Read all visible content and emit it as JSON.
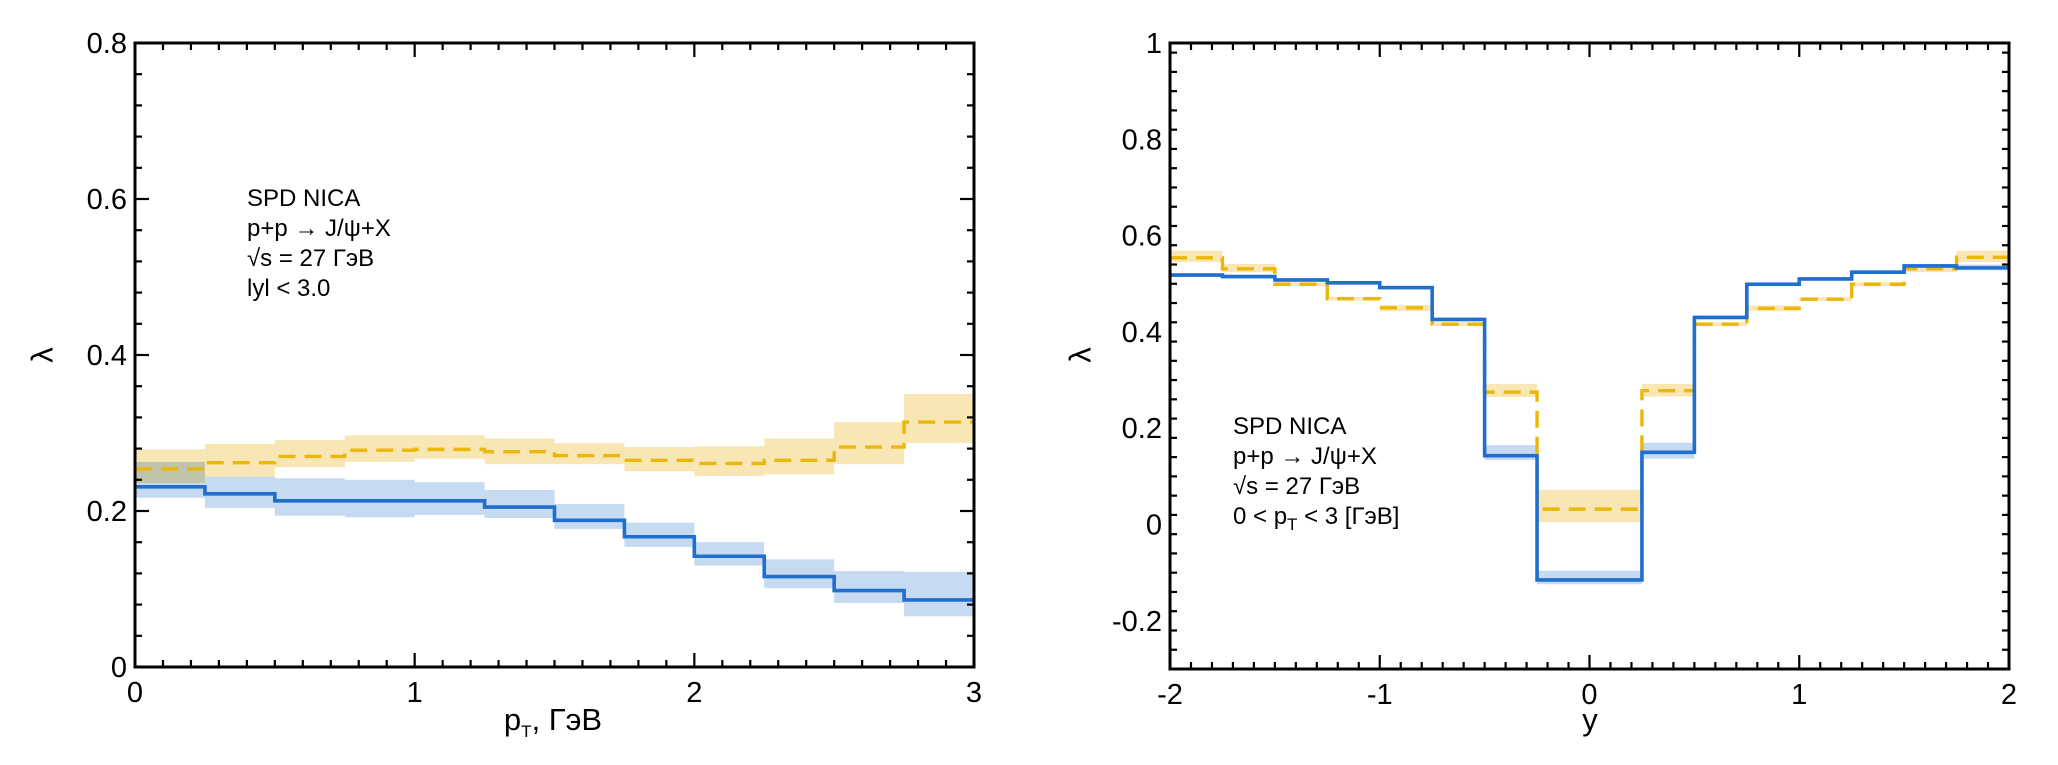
{
  "colors": {
    "series_a_line": "#1f6fce",
    "series_a_band": "#bcd3ef",
    "series_b_line": "#ebb70a",
    "series_b_band": "#f8e6b4",
    "axis": "#000000"
  },
  "chart_data": [
    {
      "type": "line",
      "subtype": "step-histogram-with-error-bands",
      "title": "",
      "xlabel": "p_T, ГэВ",
      "xlabel_main": "p",
      "xlabel_sub": "T",
      "xlabel_tail": ", ГэВ",
      "ylabel": "λ",
      "xlim": [
        0,
        3
      ],
      "ylim": [
        0,
        0.8
      ],
      "xticks": [
        0,
        1,
        2,
        3
      ],
      "xtick_labels": [
        "0",
        "1",
        "2",
        "3"
      ],
      "yticks": [
        0,
        0.2,
        0.4,
        0.6,
        0.8
      ],
      "ytick_labels": [
        "0",
        "0.2",
        "0.4",
        "0.6",
        "0.8"
      ],
      "x_minor_step": 0.1,
      "y_minor_step": 0.04,
      "grid": false,
      "annotation_lines": [
        "SPD NICA",
        "p+p → J/ψ+X",
        "√s = 27 ГэВ",
        "lyl < 3.0"
      ],
      "bin_edges": [
        0,
        0.25,
        0.5,
        0.75,
        1.0,
        1.25,
        1.5,
        1.75,
        2.0,
        2.25,
        2.5,
        2.75,
        3.0
      ],
      "series": [
        {
          "name": "blue-solid",
          "style": "solid",
          "values": [
            0.231,
            0.222,
            0.213,
            0.213,
            0.213,
            0.205,
            0.188,
            0.167,
            0.142,
            0.116,
            0.098,
            0.086
          ],
          "band_high": [
            0.263,
            0.244,
            0.242,
            0.24,
            0.237,
            0.227,
            0.209,
            0.185,
            0.16,
            0.138,
            0.123,
            0.122
          ],
          "band_low": [
            0.217,
            0.204,
            0.194,
            0.192,
            0.195,
            0.191,
            0.177,
            0.154,
            0.13,
            0.101,
            0.082,
            0.065
          ]
        },
        {
          "name": "yellow-dashed",
          "style": "dashed",
          "values": [
            0.254,
            0.262,
            0.27,
            0.278,
            0.279,
            0.276,
            0.271,
            0.265,
            0.261,
            0.265,
            0.282,
            0.314
          ],
          "band_high": [
            0.279,
            0.286,
            0.291,
            0.297,
            0.297,
            0.293,
            0.287,
            0.282,
            0.283,
            0.293,
            0.314,
            0.35
          ],
          "band_low": [
            0.236,
            0.244,
            0.256,
            0.263,
            0.267,
            0.26,
            0.26,
            0.251,
            0.245,
            0.247,
            0.26,
            0.287
          ]
        }
      ]
    },
    {
      "type": "line",
      "subtype": "step-histogram-with-error-bands",
      "title": "",
      "xlabel": "y",
      "ylabel": "λ",
      "xlim": [
        -2,
        2
      ],
      "ylim": [
        -0.3,
        1.0
      ],
      "xticks": [
        -2,
        -1,
        0,
        1,
        2
      ],
      "xtick_labels": [
        "-2",
        "-1",
        "0",
        "1",
        "2"
      ],
      "yticks": [
        -0.2,
        0,
        0.2,
        0.4,
        0.6,
        0.8,
        1.0
      ],
      "ytick_labels": [
        "-0.2",
        "0",
        "0.2",
        "0.4",
        "0.6",
        "0.8",
        "1"
      ],
      "x_minor_step": 0.1,
      "y_minor_step": 0.04,
      "grid": false,
      "annotation_lines": [
        "SPD NICA",
        "p+p → J/ψ+X",
        "√s = 27 ГэВ",
        "0 < p_T < 3 [ГэВ]"
      ],
      "annotation_last_parts": [
        "0 < p",
        "T",
        " < 3 [ГэВ]"
      ],
      "bin_edges": [
        -2.0,
        -1.75,
        -1.5,
        -1.25,
        -1.0,
        -0.75,
        -0.5,
        -0.25,
        0.25,
        0.5,
        0.75,
        1.0,
        1.25,
        1.5,
        1.75,
        2.0
      ],
      "series": [
        {
          "name": "blue-solid",
          "style": "solid",
          "values": [
            0.518,
            0.515,
            0.508,
            0.502,
            0.492,
            0.426,
            0.143,
            -0.115,
            0.15,
            0.43,
            0.499,
            0.51,
            0.524,
            0.537,
            0.533
          ],
          "band_high": [
            0.522,
            0.519,
            0.512,
            0.506,
            0.496,
            0.43,
            0.165,
            -0.096,
            0.17,
            0.434,
            0.503,
            0.514,
            0.528,
            0.541,
            0.54
          ],
          "band_low": [
            0.514,
            0.511,
            0.504,
            0.498,
            0.488,
            0.422,
            0.134,
            -0.124,
            0.137,
            0.426,
            0.495,
            0.506,
            0.52,
            0.533,
            0.528
          ]
        },
        {
          "name": "yellow-dashed",
          "style": "dashed",
          "values": [
            0.554,
            0.531,
            0.499,
            0.469,
            0.45,
            0.416,
            0.275,
            0.032,
            0.278,
            0.416,
            0.449,
            0.468,
            0.499,
            0.531,
            0.555
          ],
          "band_high": [
            0.569,
            0.541,
            0.503,
            0.473,
            0.456,
            0.42,
            0.292,
            0.072,
            0.292,
            0.42,
            0.455,
            0.472,
            0.503,
            0.541,
            0.569
          ],
          "band_low": [
            0.545,
            0.524,
            0.495,
            0.465,
            0.443,
            0.412,
            0.265,
            0.005,
            0.266,
            0.412,
            0.443,
            0.464,
            0.495,
            0.524,
            0.545
          ]
        }
      ]
    }
  ]
}
